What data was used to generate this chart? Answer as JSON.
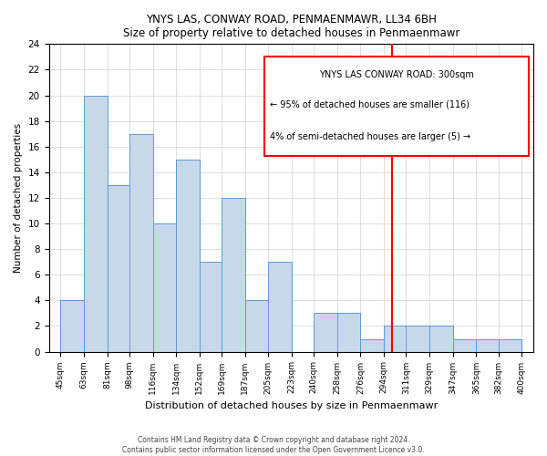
{
  "title": "YNYS LAS, CONWAY ROAD, PENMAENMAWR, LL34 6BH",
  "subtitle": "Size of property relative to detached houses in Penmaenmawr",
  "xlabel": "Distribution of detached houses by size in Penmaenmawr",
  "ylabel": "Number of detached properties",
  "bin_labels": [
    "45sqm",
    "63sqm",
    "81sqm",
    "98sqm",
    "116sqm",
    "134sqm",
    "152sqm",
    "169sqm",
    "187sqm",
    "205sqm",
    "223sqm",
    "240sqm",
    "258sqm",
    "276sqm",
    "294sqm",
    "311sqm",
    "329sqm",
    "347sqm",
    "365sqm",
    "382sqm",
    "400sqm"
  ],
  "bin_edges": [
    45,
    63,
    81,
    98,
    116,
    134,
    152,
    169,
    187,
    205,
    223,
    240,
    258,
    276,
    294,
    311,
    329,
    347,
    365,
    382,
    400
  ],
  "counts": [
    4,
    20,
    13,
    17,
    10,
    15,
    7,
    12,
    4,
    7,
    0,
    3,
    3,
    1,
    2,
    2,
    2,
    1,
    1,
    1
  ],
  "bar_color": "#c8d8eb",
  "bar_edge_color": "#5b9bd5",
  "grid_color": "#d0d0d0",
  "vline_x": 300,
  "vline_color": "red",
  "annotation_title": "YNYS LAS CONWAY ROAD: 300sqm",
  "annotation_line1": "← 95% of detached houses are smaller (116)",
  "annotation_line2": "4% of semi-detached houses are larger (5) →",
  "footer_line1": "Contains HM Land Registry data © Crown copyright and database right 2024.",
  "footer_line2": "Contains public sector information licensed under the Open Government Licence v3.0.",
  "ylim": [
    0,
    24
  ],
  "yticks": [
    0,
    2,
    4,
    6,
    8,
    10,
    12,
    14,
    16,
    18,
    20,
    22,
    24
  ],
  "background_color": "#ffffff"
}
